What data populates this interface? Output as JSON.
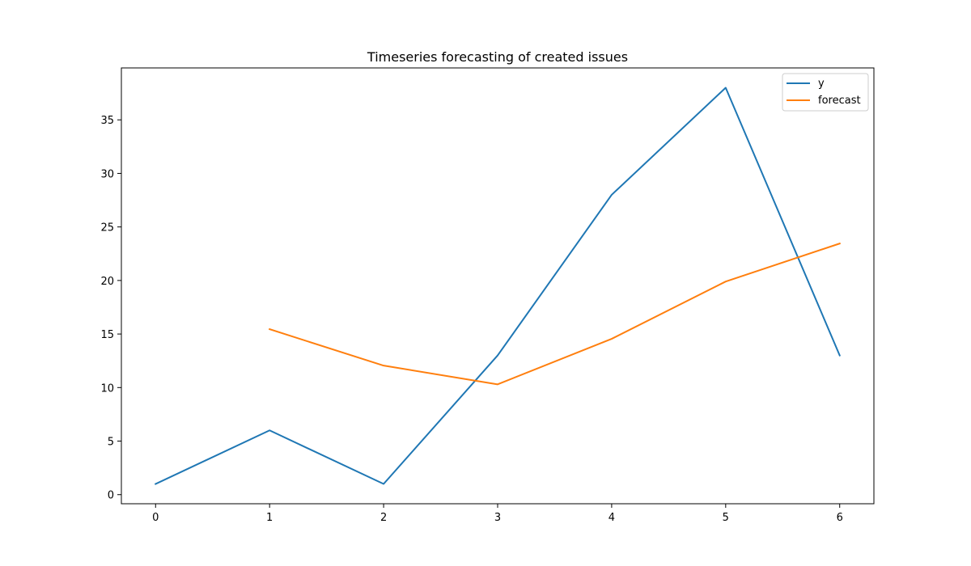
{
  "chart_data": {
    "type": "line",
    "title": "Timeseries forecasting of created issues",
    "xlabel": "",
    "ylabel": "",
    "xlim": [
      -0.3,
      6.3
    ],
    "ylim": [
      -0.85,
      39.85
    ],
    "xticks": [
      0,
      1,
      2,
      3,
      4,
      5,
      6
    ],
    "yticks": [
      0,
      5,
      10,
      15,
      20,
      25,
      30,
      35
    ],
    "legend_position": "top-right",
    "series": [
      {
        "name": "y",
        "color": "#1f77b4",
        "x": [
          0,
          1,
          2,
          3,
          4,
          5,
          6
        ],
        "values": [
          1,
          6,
          1,
          13,
          28,
          38,
          13
        ]
      },
      {
        "name": "forecast",
        "color": "#ff7f0e",
        "x": [
          1,
          2,
          3,
          4,
          5,
          6
        ],
        "values": [
          15.45,
          12.05,
          10.3,
          14.55,
          19.9,
          23.45
        ]
      }
    ]
  }
}
